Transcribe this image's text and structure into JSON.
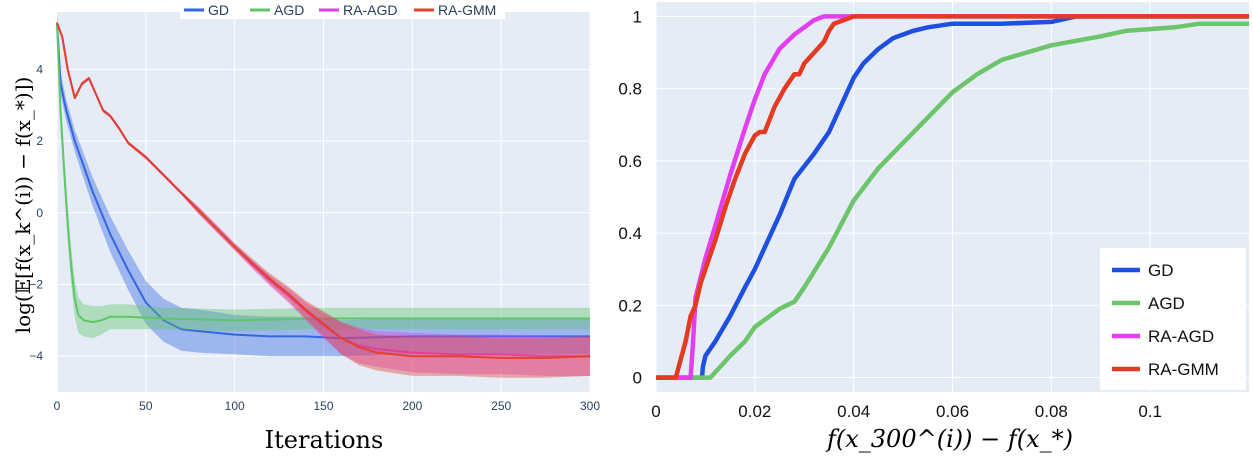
{
  "chart_data": [
    {
      "type": "line",
      "title": "",
      "xlabel": "Iterations",
      "ylabel": "log(𝔼[f(x_k^(i)) − f(x_*)])",
      "xlim": [
        0,
        300
      ],
      "ylim": [
        -5,
        5.6
      ],
      "xticks": [
        "0",
        "50",
        "100",
        "150",
        "200",
        "250",
        "300"
      ],
      "yticks": [
        "4",
        "2",
        "0",
        "−2",
        "−4"
      ],
      "grid": true,
      "legend_position": "top-center",
      "series": [
        {
          "name": "GD",
          "color": "#3366e0",
          "x": [
            0,
            2,
            5,
            10,
            15,
            20,
            25,
            30,
            40,
            50,
            60,
            70,
            80,
            100,
            120,
            140,
            160,
            200,
            250,
            300
          ],
          "y": [
            5.3,
            3.6,
            2.9,
            2.0,
            1.3,
            0.6,
            0.0,
            -0.6,
            -1.6,
            -2.5,
            -3.0,
            -3.25,
            -3.3,
            -3.4,
            -3.45,
            -3.45,
            -3.5,
            -3.45,
            -3.45,
            -3.45
          ],
          "band": [
            0.3,
            0.3,
            0.3,
            0.3,
            0.35,
            0.4,
            0.45,
            0.5,
            0.55,
            0.6,
            0.6,
            0.6,
            0.6,
            0.55,
            0.55,
            0.55,
            0.5,
            0.5,
            0.5,
            0.5
          ]
        },
        {
          "name": "AGD",
          "color": "#5fc56a",
          "x": [
            0,
            2,
            4,
            6,
            8,
            10,
            12,
            15,
            20,
            25,
            30,
            40,
            60,
            100,
            150,
            200,
            250,
            300
          ],
          "y": [
            5.3,
            2.8,
            1.2,
            -0.3,
            -1.5,
            -2.4,
            -2.85,
            -3.0,
            -3.05,
            -3.0,
            -2.9,
            -2.9,
            -2.95,
            -3.0,
            -2.95,
            -2.95,
            -2.95,
            -2.95
          ],
          "band": [
            0.3,
            0.4,
            0.5,
            0.5,
            0.5,
            0.5,
            0.5,
            0.45,
            0.45,
            0.4,
            0.35,
            0.35,
            0.3,
            0.3,
            0.3,
            0.3,
            0.3,
            0.3
          ]
        },
        {
          "name": "RA-AGD",
          "color": "#e040e8",
          "x": [
            0,
            3,
            6,
            10,
            14,
            18,
            22,
            26,
            30,
            35,
            40,
            50,
            60,
            70,
            80,
            90,
            100,
            110,
            120,
            130,
            140,
            150,
            160,
            170,
            180,
            200,
            225,
            250,
            275,
            300
          ],
          "y": [
            5.3,
            4.9,
            4.0,
            3.2,
            3.6,
            3.75,
            3.3,
            2.85,
            2.7,
            2.35,
            1.95,
            1.55,
            1.05,
            0.55,
            0.05,
            -0.45,
            -0.95,
            -1.45,
            -1.9,
            -2.3,
            -2.75,
            -3.15,
            -3.5,
            -3.7,
            -3.8,
            -3.9,
            -3.95,
            -3.95,
            -4.0,
            -4.0
          ],
          "band": [
            0.05,
            0.05,
            0.05,
            0.05,
            0.05,
            0.05,
            0.05,
            0.05,
            0.05,
            0.05,
            0.05,
            0.05,
            0.05,
            0.05,
            0.1,
            0.1,
            0.1,
            0.12,
            0.15,
            0.2,
            0.25,
            0.35,
            0.45,
            0.5,
            0.5,
            0.55,
            0.55,
            0.55,
            0.55,
            0.55
          ]
        },
        {
          "name": "RA-GMM",
          "color": "#e2412e",
          "x": [
            0,
            3,
            6,
            10,
            14,
            18,
            22,
            26,
            30,
            35,
            40,
            50,
            60,
            70,
            80,
            90,
            100,
            110,
            120,
            130,
            140,
            150,
            160,
            170,
            180,
            200,
            225,
            250,
            275,
            300
          ],
          "y": [
            5.3,
            4.9,
            4.0,
            3.2,
            3.6,
            3.75,
            3.3,
            2.85,
            2.7,
            2.35,
            1.95,
            1.55,
            1.05,
            0.55,
            0.05,
            -0.45,
            -0.95,
            -1.4,
            -1.85,
            -2.25,
            -2.7,
            -3.1,
            -3.5,
            -3.75,
            -3.9,
            -4.0,
            -4.0,
            -4.05,
            -4.05,
            -4.0
          ],
          "band": [
            0.05,
            0.05,
            0.05,
            0.05,
            0.05,
            0.05,
            0.05,
            0.05,
            0.05,
            0.05,
            0.05,
            0.05,
            0.05,
            0.05,
            0.1,
            0.1,
            0.1,
            0.12,
            0.15,
            0.2,
            0.25,
            0.35,
            0.45,
            0.5,
            0.5,
            0.55,
            0.55,
            0.55,
            0.55,
            0.55
          ]
        }
      ]
    },
    {
      "type": "line",
      "title": "",
      "xlabel": "f(x_300^(i)) − f(x_*)",
      "ylabel": "",
      "xlim": [
        0,
        0.12
      ],
      "ylim": [
        -0.04,
        1.04
      ],
      "xticks": [
        "0",
        "0.02",
        "0.04",
        "0.06",
        "0.08",
        "0.1"
      ],
      "yticks": [
        "0",
        "0.2",
        "0.4",
        "0.6",
        "0.8",
        "1"
      ],
      "grid": true,
      "legend_position": "bottom-right",
      "series": [
        {
          "name": "GD",
          "color": "#1f4fe0",
          "x": [
            0,
            0.0093,
            0.0095,
            0.01,
            0.012,
            0.015,
            0.018,
            0.02,
            0.025,
            0.028,
            0.032,
            0.035,
            0.038,
            0.04,
            0.042,
            0.045,
            0.048,
            0.052,
            0.055,
            0.06,
            0.07,
            0.08,
            0.085,
            0.09,
            0.12
          ],
          "y": [
            0,
            0,
            0.03,
            0.06,
            0.1,
            0.17,
            0.25,
            0.3,
            0.45,
            0.55,
            0.62,
            0.68,
            0.77,
            0.83,
            0.87,
            0.91,
            0.94,
            0.96,
            0.97,
            0.98,
            0.98,
            0.985,
            1.0,
            1.0,
            1.0
          ]
        },
        {
          "name": "AGD",
          "color": "#6cc46b",
          "x": [
            0,
            0.011,
            0.013,
            0.015,
            0.018,
            0.02,
            0.022,
            0.025,
            0.028,
            0.03,
            0.035,
            0.04,
            0.045,
            0.05,
            0.055,
            0.06,
            0.065,
            0.07,
            0.08,
            0.09,
            0.095,
            0.1,
            0.105,
            0.11,
            0.12
          ],
          "y": [
            0,
            0,
            0.03,
            0.06,
            0.1,
            0.14,
            0.16,
            0.19,
            0.21,
            0.25,
            0.36,
            0.49,
            0.58,
            0.65,
            0.72,
            0.79,
            0.84,
            0.88,
            0.92,
            0.945,
            0.96,
            0.965,
            0.97,
            0.98,
            0.98
          ]
        },
        {
          "name": "RA-AGD",
          "color": "#e23ef0",
          "x": [
            0,
            0.007,
            0.0075,
            0.008,
            0.01,
            0.012,
            0.015,
            0.018,
            0.02,
            0.022,
            0.025,
            0.028,
            0.03,
            0.032,
            0.034,
            0.036,
            0.04,
            0.12
          ],
          "y": [
            0,
            0,
            0.1,
            0.22,
            0.33,
            0.42,
            0.56,
            0.69,
            0.77,
            0.84,
            0.91,
            0.95,
            0.97,
            0.99,
            1.0,
            1.0,
            1.0,
            1.0
          ]
        },
        {
          "name": "RA-GMM",
          "color": "#e53a22",
          "x": [
            0,
            0.004,
            0.005,
            0.006,
            0.007,
            0.008,
            0.009,
            0.01,
            0.012,
            0.014,
            0.016,
            0.018,
            0.02,
            0.021,
            0.022,
            0.024,
            0.026,
            0.028,
            0.029,
            0.03,
            0.032,
            0.034,
            0.035,
            0.036,
            0.038,
            0.04,
            0.12
          ],
          "y": [
            0,
            0,
            0.05,
            0.1,
            0.17,
            0.2,
            0.26,
            0.3,
            0.38,
            0.47,
            0.55,
            0.62,
            0.67,
            0.68,
            0.68,
            0.75,
            0.8,
            0.84,
            0.84,
            0.87,
            0.9,
            0.93,
            0.96,
            0.98,
            0.99,
            1.0,
            1.0
          ]
        }
      ]
    }
  ]
}
